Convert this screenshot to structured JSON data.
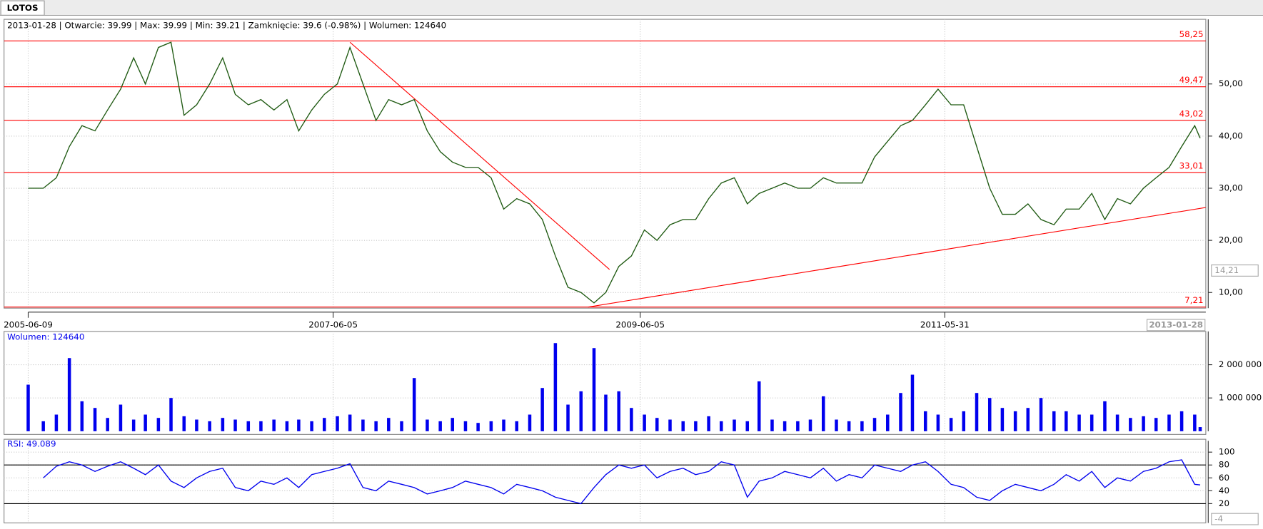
{
  "tab": "LOTOS",
  "chart_data": [
    {
      "type": "line",
      "title": "2013-01-28 | Otwarcie: 39.99 | Max: 39.99 | Min: 39.21 | Zamknięcie: 39.6 (-0.98%)  | Wolumen: 124640",
      "x": [
        "2005-06-09",
        "2005-07-15",
        "2005-08-15",
        "2005-09-15",
        "2005-10-15",
        "2005-11-15",
        "2005-12-15",
        "2006-01-15",
        "2006-02-15",
        "2006-03-15",
        "2006-04-15",
        "2006-05-15",
        "2006-06-15",
        "2006-07-15",
        "2006-08-15",
        "2006-09-15",
        "2006-10-15",
        "2006-11-15",
        "2006-12-15",
        "2007-01-15",
        "2007-02-15",
        "2007-03-15",
        "2007-04-15",
        "2007-05-15",
        "2007-06-15",
        "2007-07-15",
        "2007-08-15",
        "2007-09-15",
        "2007-10-15",
        "2007-11-15",
        "2007-12-15",
        "2008-01-15",
        "2008-02-15",
        "2008-03-15",
        "2008-04-15",
        "2008-05-15",
        "2008-06-15",
        "2008-07-15",
        "2008-08-15",
        "2008-09-15",
        "2008-10-15",
        "2008-11-15",
        "2008-12-15",
        "2009-01-15",
        "2009-02-15",
        "2009-03-15",
        "2009-04-15",
        "2009-05-15",
        "2009-06-15",
        "2009-07-15",
        "2009-08-15",
        "2009-09-15",
        "2009-10-15",
        "2009-11-15",
        "2009-12-15",
        "2010-01-15",
        "2010-02-15",
        "2010-03-15",
        "2010-04-15",
        "2010-05-15",
        "2010-06-15",
        "2010-07-15",
        "2010-08-15",
        "2010-09-15",
        "2010-10-15",
        "2010-11-15",
        "2010-12-15",
        "2011-01-15",
        "2011-02-15",
        "2011-03-15",
        "2011-04-15",
        "2011-05-15",
        "2011-06-15",
        "2011-07-15",
        "2011-08-15",
        "2011-09-15",
        "2011-10-15",
        "2011-11-15",
        "2011-12-15",
        "2012-01-15",
        "2012-02-15",
        "2012-03-15",
        "2012-04-15",
        "2012-05-15",
        "2012-06-15",
        "2012-07-15",
        "2012-08-15",
        "2012-09-15",
        "2012-10-15",
        "2012-11-15",
        "2012-12-15",
        "2013-01-15",
        "2013-01-28"
      ],
      "series": [
        {
          "color": "#1f5a12",
          "values": [
            30,
            30,
            32,
            38,
            42,
            41,
            45,
            49,
            55,
            50,
            57,
            58,
            44,
            46,
            50,
            55,
            48,
            46,
            47,
            45,
            47,
            41,
            45,
            48,
            50,
            57,
            50,
            43,
            47,
            46,
            47,
            41,
            37,
            35,
            34,
            34,
            32,
            26,
            28,
            27,
            24,
            17,
            11,
            10,
            8,
            10,
            15,
            17,
            22,
            20,
            23,
            24,
            24,
            28,
            31,
            32,
            27,
            29,
            30,
            31,
            30,
            30,
            32,
            31,
            31,
            31,
            36,
            39,
            42,
            43,
            46,
            49,
            46,
            46,
            38,
            30,
            25,
            25,
            27,
            24,
            23,
            26,
            26,
            29,
            24,
            28,
            27,
            30,
            32,
            34,
            38,
            42,
            39.6
          ]
        }
      ],
      "xlim": [
        "2005-06-09",
        "2013-01-28"
      ],
      "xticks": [
        "2005-06-09",
        "2007-06-05",
        "2009-06-05",
        "2011-05-31"
      ],
      "ylim": [
        7,
        62.4
      ],
      "yticks": [
        {
          "value": 10,
          "label": "10,00"
        },
        {
          "value": 20,
          "label": "20,00"
        },
        {
          "value": 30,
          "label": "30,00"
        },
        {
          "value": 40,
          "label": "40,00"
        },
        {
          "value": 50,
          "label": "50,00"
        }
      ],
      "levels": [
        {
          "value": 58.25,
          "label": "58,25"
        },
        {
          "value": 49.47,
          "label": "49,47"
        },
        {
          "value": 43.02,
          "label": "43,02"
        },
        {
          "value": 33.01,
          "label": "33,01"
        },
        {
          "value": 7.21,
          "label": "7,21"
        }
      ],
      "level_color": "#ff0000",
      "trendlines": [
        {
          "x": [
            "2007-07-15",
            "2009-03-24"
          ],
          "y": [
            58,
            14.4
          ]
        },
        {
          "x": [
            "2009-02-01",
            "2013-02-10"
          ],
          "y": [
            7.21,
            26.3
          ]
        }
      ],
      "cursor_value": {
        "value": 14.21,
        "label": "14,21"
      },
      "cursor_date": "2013-01-28",
      "grid": true
    },
    {
      "type": "bar",
      "title": "Wolumen: 124640",
      "color": "#0000ee",
      "values": [
        1400000,
        300000,
        500000,
        2200000,
        900000,
        700000,
        400000,
        800000,
        350000,
        500000,
        400000,
        1000000,
        450000,
        350000,
        300000,
        400000,
        350000,
        300000,
        300000,
        350000,
        300000,
        350000,
        300000,
        400000,
        450000,
        500000,
        350000,
        300000,
        400000,
        300000,
        1600000,
        350000,
        300000,
        400000,
        300000,
        250000,
        300000,
        350000,
        300000,
        500000,
        1300000,
        2650000,
        800000,
        1200000,
        2500000,
        1100000,
        1200000,
        700000,
        500000,
        400000,
        350000,
        300000,
        300000,
        450000,
        300000,
        350000,
        300000,
        1500000,
        350000,
        300000,
        300000,
        350000,
        1050000,
        350000,
        300000,
        300000,
        400000,
        500000,
        1150000,
        1700000,
        600000,
        500000,
        400000,
        600000,
        1150000,
        1000000,
        700000,
        600000,
        700000,
        1000000,
        600000,
        600000,
        500000,
        500000,
        900000,
        500000,
        400000,
        450000,
        400000,
        500000,
        600000,
        500000,
        124640
      ],
      "ylim": [
        0,
        3000000
      ],
      "yticks": [
        {
          "value": 1000000,
          "label": "1 000 000"
        },
        {
          "value": 2000000,
          "label": "2 000 000"
        }
      ],
      "grid": true
    },
    {
      "type": "line",
      "title": "RSI: 49.089",
      "series": [
        {
          "color": "#0000ee",
          "values": [
            null,
            60,
            78,
            85,
            80,
            70,
            78,
            85,
            75,
            65,
            80,
            55,
            45,
            60,
            70,
            75,
            45,
            40,
            55,
            50,
            60,
            45,
            65,
            70,
            75,
            82,
            45,
            40,
            55,
            50,
            45,
            35,
            40,
            45,
            55,
            50,
            45,
            35,
            50,
            45,
            40,
            30,
            25,
            20,
            45,
            65,
            80,
            75,
            80,
            60,
            70,
            75,
            65,
            70,
            85,
            80,
            30,
            55,
            60,
            70,
            65,
            60,
            75,
            55,
            65,
            60,
            80,
            75,
            70,
            80,
            85,
            70,
            50,
            45,
            30,
            25,
            40,
            50,
            45,
            40,
            50,
            65,
            55,
            70,
            45,
            60,
            55,
            70,
            75,
            85,
            88,
            50,
            49.089
          ]
        }
      ],
      "ylim": [
        -10,
        117.5
      ],
      "yticks": [
        20,
        40,
        60,
        80,
        100
      ],
      "band_lines": [
        20,
        80
      ],
      "cursor_value": {
        "value": -4,
        "label": "-4"
      },
      "grid": true
    }
  ]
}
